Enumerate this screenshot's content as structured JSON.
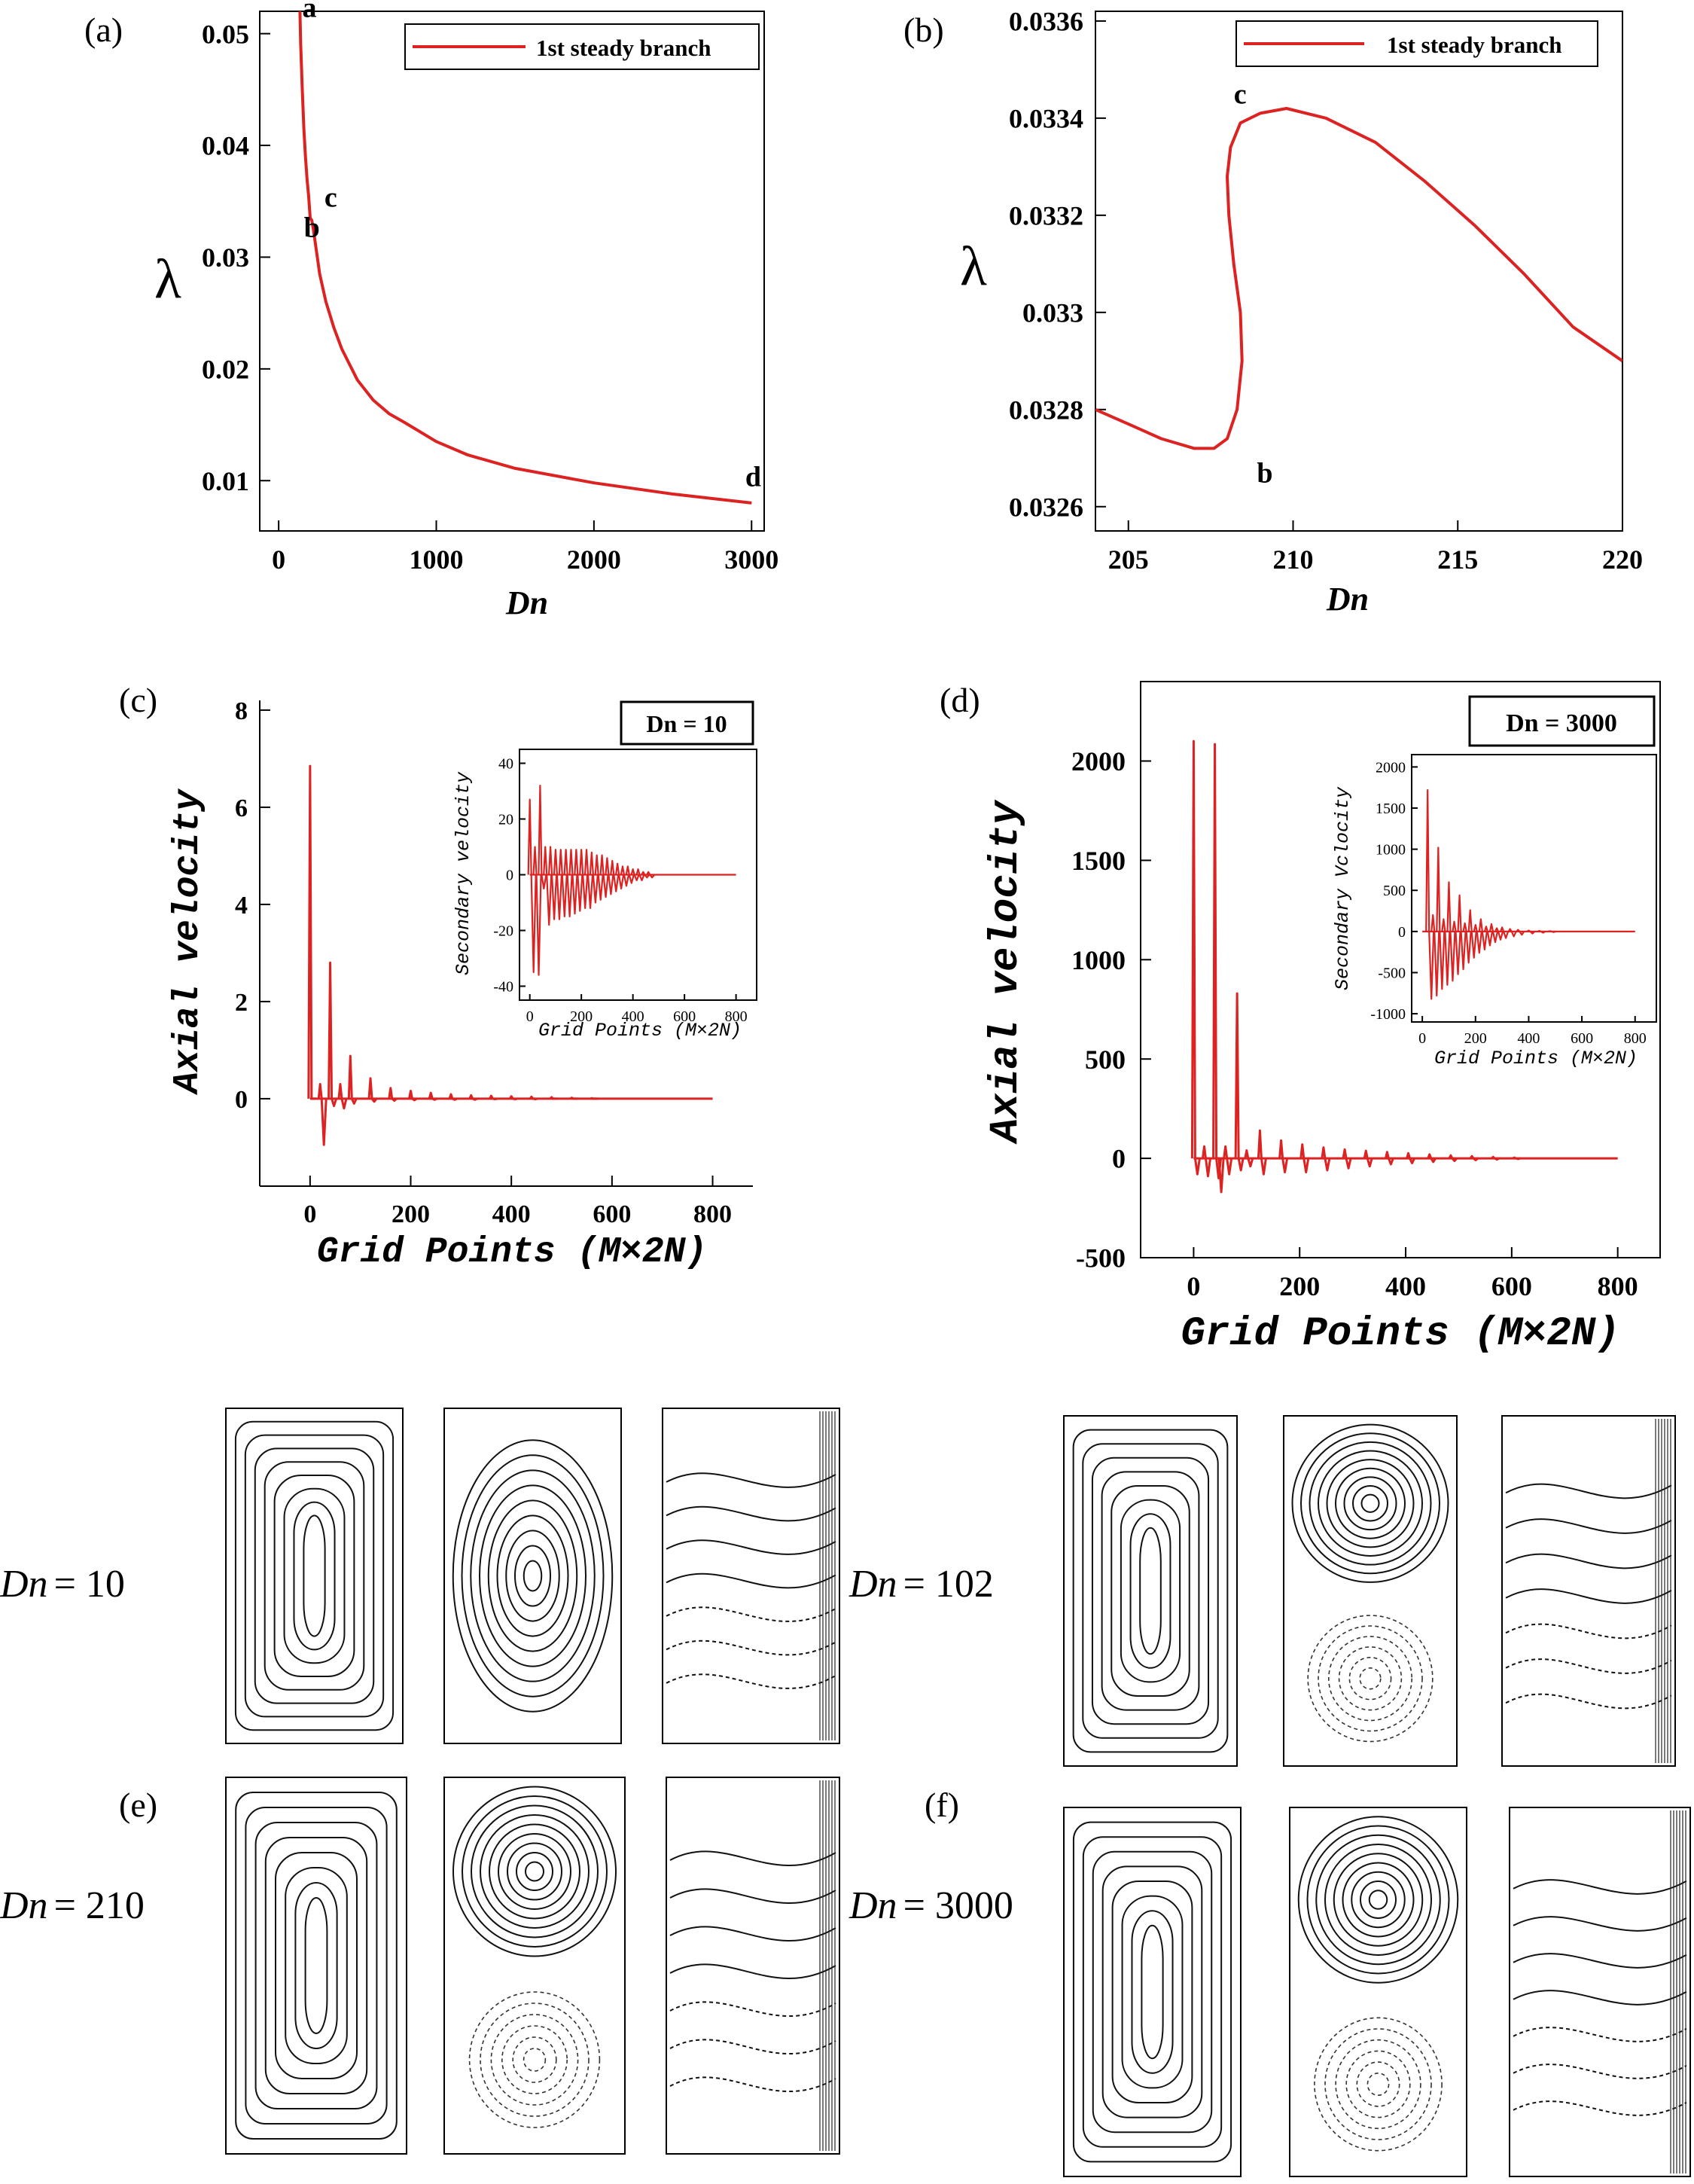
{
  "chart_data": [
    {
      "id": "a",
      "panel_label": "(a)",
      "type": "line",
      "xlabel": "Dn",
      "ylabel": "λ",
      "xlim": [
        -120,
        3080
      ],
      "ylim": [
        0.0055,
        0.052
      ],
      "xticks": [
        0,
        1000,
        2000,
        3000
      ],
      "xtick_labels": [
        "0",
        "1000",
        "2000",
        "3000"
      ],
      "yticks": [
        0.01,
        0.02,
        0.03,
        0.04,
        0.05
      ],
      "ytick_labels": [
        "0.01",
        "0.02",
        "0.03",
        "0.04",
        "0.05"
      ],
      "legend": [
        "1st steady branch"
      ],
      "legend_position": "top-right",
      "series": [
        {
          "name": "1st steady branch",
          "color": "#dd2222",
          "x": [
            135,
            140,
            150,
            160,
            170,
            180,
            190,
            200,
            210,
            220,
            240,
            260,
            300,
            350,
            400,
            450,
            500,
            600,
            700,
            800,
            1000,
            1200,
            1500,
            2000,
            2500,
            3000
          ],
          "y": [
            0.052,
            0.049,
            0.045,
            0.0415,
            0.039,
            0.037,
            0.0355,
            0.0335,
            0.0333,
            0.0325,
            0.0305,
            0.0285,
            0.026,
            0.0237,
            0.0218,
            0.0204,
            0.019,
            0.0172,
            0.016,
            0.0152,
            0.0135,
            0.0123,
            0.0111,
            0.0098,
            0.0088,
            0.008
          ]
        }
      ],
      "annotations": [
        {
          "text": "a",
          "x": 150,
          "y": 0.0515
        },
        {
          "text": "b",
          "x": 160,
          "y": 0.0318
        },
        {
          "text": "c",
          "x": 290,
          "y": 0.0345
        },
        {
          "text": "d",
          "x": 2960,
          "y": 0.0095
        }
      ]
    },
    {
      "id": "b",
      "panel_label": "(b)",
      "type": "line",
      "xlabel": "Dn",
      "ylabel": "λ",
      "xlim": [
        204,
        220
      ],
      "ylim": [
        0.03255,
        0.03362
      ],
      "xticks": [
        205,
        210,
        215,
        220
      ],
      "xtick_labels": [
        "205",
        "210",
        "215",
        "220"
      ],
      "yticks": [
        0.0326,
        0.0328,
        0.033,
        0.0332,
        0.0334,
        0.0336
      ],
      "ytick_labels": [
        "0.0326",
        "0.0328",
        "0.033",
        "0.0332",
        "0.0334",
        "0.0336"
      ],
      "legend": [
        "1st steady branch"
      ],
      "legend_position": "top-right",
      "series": [
        {
          "name": "1st steady branch",
          "color": "#dd2222",
          "x": [
            204,
            205,
            206,
            207,
            207.6,
            208.0,
            208.3,
            208.45,
            208.4,
            208.2,
            208.05,
            208.0,
            208.1,
            208.4,
            209.0,
            209.8,
            211,
            212.5,
            214,
            215.5,
            217,
            218.5,
            220
          ],
          "y": [
            0.0328,
            0.03277,
            0.03274,
            0.03272,
            0.03272,
            0.03274,
            0.0328,
            0.0329,
            0.033,
            0.0331,
            0.0332,
            0.03328,
            0.03334,
            0.03339,
            0.03341,
            0.03342,
            0.0334,
            0.03335,
            0.03327,
            0.03318,
            0.03308,
            0.03297,
            0.0329
          ]
        }
      ],
      "annotations": [
        {
          "text": "c",
          "x": 208.2,
          "y": 0.03343
        },
        {
          "text": "b",
          "x": 208.9,
          "y": 0.03265
        }
      ]
    },
    {
      "id": "c",
      "panel_label": "(c)",
      "type": "line",
      "xlabel": "Grid Points (M×2N)",
      "ylabel": "Axial velocity",
      "xlim": [
        -100,
        880
      ],
      "ylim": [
        -1.8,
        8.2
      ],
      "xticks": [
        0,
        200,
        400,
        600,
        800
      ],
      "xtick_labels": [
        "0",
        "200",
        "400",
        "600",
        "800"
      ],
      "yticks": [
        0,
        2,
        4,
        6,
        8
      ],
      "ytick_labels": [
        "0",
        "2",
        "4",
        "6",
        "8"
      ],
      "legend": [
        "Dn = 10"
      ],
      "legend_position": "top-right",
      "main_spikes": [
        {
          "x": 0,
          "up": 6.85,
          "down": 0
        },
        {
          "x": 20,
          "up": 0.3,
          "down": -0.95
        },
        {
          "x": 40,
          "up": 2.8,
          "down": -0.15
        },
        {
          "x": 60,
          "up": 0.3,
          "down": -0.2
        },
        {
          "x": 80,
          "up": 0.88,
          "down": -0.1
        },
        {
          "x": 120,
          "up": 0.42,
          "down": -0.06
        },
        {
          "x": 160,
          "up": 0.22,
          "down": -0.04
        },
        {
          "x": 200,
          "up": 0.16,
          "down": -0.03
        },
        {
          "x": 240,
          "up": 0.12,
          "down": -0.02
        },
        {
          "x": 280,
          "up": 0.09,
          "down": -0.02
        },
        {
          "x": 320,
          "up": 0.07,
          "down": -0.02
        },
        {
          "x": 360,
          "up": 0.06,
          "down": -0.01
        },
        {
          "x": 400,
          "up": 0.05,
          "down": -0.01
        },
        {
          "x": 440,
          "up": 0.04,
          "down": -0.01
        },
        {
          "x": 480,
          "up": 0.03,
          "down": 0
        },
        {
          "x": 520,
          "up": 0.02,
          "down": 0
        },
        {
          "x": 560,
          "up": 0.01,
          "down": 0
        }
      ],
      "main_range": [
        0,
        800
      ],
      "inset": {
        "ylabel": "Secondary velocity",
        "xlabel": "Grid Points (M×2N)",
        "xlim": [
          -40,
          880
        ],
        "ylim": [
          -45,
          45
        ],
        "xticks": [
          0,
          200,
          400,
          600,
          800
        ],
        "xtick_labels": [
          "0",
          "200",
          "400",
          "600",
          "800"
        ],
        "yticks": [
          -40,
          -20,
          0,
          20,
          40
        ],
        "ytick_labels": [
          "-40",
          "-20",
          "0",
          "20",
          "40"
        ],
        "spikes": [
          {
            "x": 0,
            "up": 27,
            "down": -35
          },
          {
            "x": 20,
            "up": 10,
            "down": -36
          },
          {
            "x": 40,
            "up": 32,
            "down": -5
          },
          {
            "x": 60,
            "up": 10,
            "down": -18
          },
          {
            "x": 80,
            "up": 10,
            "down": -16
          },
          {
            "x": 100,
            "up": 9,
            "down": -16
          },
          {
            "x": 120,
            "up": 9,
            "down": -15
          },
          {
            "x": 140,
            "up": 9,
            "down": -15
          },
          {
            "x": 160,
            "up": 9,
            "down": -14
          },
          {
            "x": 180,
            "up": 9,
            "down": -13
          },
          {
            "x": 200,
            "up": 9,
            "down": -12
          },
          {
            "x": 220,
            "up": 9,
            "down": -12
          },
          {
            "x": 240,
            "up": 8,
            "down": -10
          },
          {
            "x": 260,
            "up": 7,
            "down": -9
          },
          {
            "x": 280,
            "up": 7,
            "down": -8
          },
          {
            "x": 300,
            "up": 6,
            "down": -7
          },
          {
            "x": 320,
            "up": 5,
            "down": -6
          },
          {
            "x": 340,
            "up": 4,
            "down": -5
          },
          {
            "x": 360,
            "up": 3,
            "down": -4
          },
          {
            "x": 380,
            "up": 3,
            "down": -3
          },
          {
            "x": 400,
            "up": 2,
            "down": -2
          },
          {
            "x": 420,
            "up": 2,
            "down": -2
          },
          {
            "x": 440,
            "up": 1,
            "down": -1
          },
          {
            "x": 460,
            "up": 1,
            "down": -1
          }
        ],
        "range": [
          0,
          800
        ]
      }
    },
    {
      "id": "d",
      "panel_label": "(d)",
      "type": "line",
      "xlabel": "Grid Points (M×2N)",
      "ylabel": "Axial velocity",
      "xlim": [
        -100,
        880
      ],
      "ylim": [
        -500,
        2400
      ],
      "xticks": [
        0,
        200,
        400,
        600,
        800
      ],
      "xtick_labels": [
        "0",
        "200",
        "400",
        "600",
        "800"
      ],
      "yticks": [
        -500,
        0,
        500,
        1000,
        1500,
        2000
      ],
      "ytick_labels": [
        "-500",
        "0",
        "500",
        "1000",
        "1500",
        "2000"
      ],
      "legend": [
        "Dn = 3000"
      ],
      "legend_position": "top-right",
      "main_spikes": [
        {
          "x": 0,
          "up": 2100,
          "down": -80
        },
        {
          "x": 20,
          "up": 60,
          "down": -90
        },
        {
          "x": 40,
          "up": 2085,
          "down": -100
        },
        {
          "x": 45,
          "up": 0,
          "down": -170
        },
        {
          "x": 60,
          "up": 60,
          "down": -80
        },
        {
          "x": 82,
          "up": 830,
          "down": -60
        },
        {
          "x": 100,
          "up": 40,
          "down": -40
        },
        {
          "x": 125,
          "up": 140,
          "down": -80
        },
        {
          "x": 165,
          "up": 90,
          "down": -70
        },
        {
          "x": 205,
          "up": 70,
          "down": -70
        },
        {
          "x": 245,
          "up": 55,
          "down": -60
        },
        {
          "x": 285,
          "up": 45,
          "down": -50
        },
        {
          "x": 325,
          "up": 38,
          "down": -40
        },
        {
          "x": 365,
          "up": 32,
          "down": -30
        },
        {
          "x": 405,
          "up": 26,
          "down": -24
        },
        {
          "x": 445,
          "up": 20,
          "down": -18
        },
        {
          "x": 485,
          "up": 15,
          "down": -13
        },
        {
          "x": 525,
          "up": 11,
          "down": -9
        },
        {
          "x": 565,
          "up": 7,
          "down": -6
        },
        {
          "x": 605,
          "up": 4,
          "down": -3
        }
      ],
      "main_range": [
        0,
        800
      ],
      "inset": {
        "ylabel": "Secondary Vclocity",
        "xlabel": "Grid Points (M×2N)",
        "xlim": [
          -40,
          880
        ],
        "ylim": [
          -1100,
          2150
        ],
        "xticks": [
          0,
          200,
          400,
          600,
          800
        ],
        "xtick_labels": [
          "0",
          "200",
          "400",
          "600",
          "800"
        ],
        "yticks": [
          -1000,
          -500,
          0,
          500,
          1000,
          1500,
          2000
        ],
        "ytick_labels": [
          "-1000",
          "-500",
          "0",
          "500",
          "1000",
          "1500",
          "2000"
        ],
        "spikes": [
          {
            "x": 20,
            "up": 1720,
            "down": -820
          },
          {
            "x": 40,
            "up": 200,
            "down": -780
          },
          {
            "x": 60,
            "up": 1020,
            "down": -700
          },
          {
            "x": 80,
            "up": 150,
            "down": -650
          },
          {
            "x": 100,
            "up": 600,
            "down": -600
          },
          {
            "x": 120,
            "up": 120,
            "down": -520
          },
          {
            "x": 140,
            "up": 440,
            "down": -460
          },
          {
            "x": 160,
            "up": 100,
            "down": -380
          },
          {
            "x": 180,
            "up": 260,
            "down": -320
          },
          {
            "x": 200,
            "up": 80,
            "down": -260
          },
          {
            "x": 220,
            "up": 150,
            "down": -220
          },
          {
            "x": 240,
            "up": 60,
            "down": -170
          },
          {
            "x": 260,
            "up": 90,
            "down": -130
          },
          {
            "x": 280,
            "up": 40,
            "down": -100
          },
          {
            "x": 300,
            "up": 50,
            "down": -80
          },
          {
            "x": 330,
            "up": 30,
            "down": -60
          },
          {
            "x": 360,
            "up": 20,
            "down": -40
          },
          {
            "x": 400,
            "up": 12,
            "down": -25
          },
          {
            "x": 440,
            "up": 8,
            "down": -15
          },
          {
            "x": 480,
            "up": 5,
            "down": -8
          }
        ],
        "range": [
          0,
          800
        ]
      }
    }
  ],
  "contour_panels": [
    {
      "label": "",
      "dn_text": "= 10"
    },
    {
      "label": "",
      "dn_text": "= 102"
    },
    {
      "label": "(e)",
      "dn_text": "= 210"
    },
    {
      "label": "(f)",
      "dn_text": "= 3000"
    }
  ],
  "dn_symbol": "Dn"
}
